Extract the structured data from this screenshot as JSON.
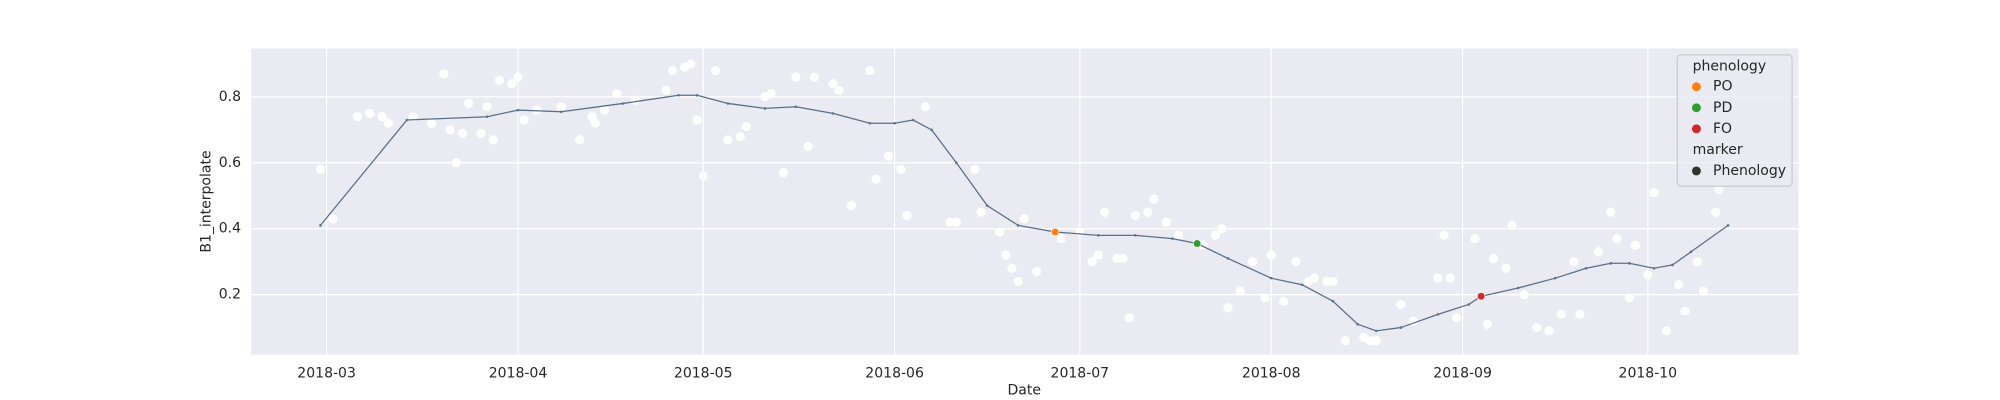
{
  "chart_data": {
    "type": "line",
    "x_label": "Date",
    "y_label": "B1_interpolate",
    "xlim": [
      47.8,
      298.4
    ],
    "ylim": [
      0.018,
      0.947
    ],
    "xticks": [
      {
        "value": 60,
        "label": "2018-03"
      },
      {
        "value": 91,
        "label": "2018-04"
      },
      {
        "value": 121,
        "label": "2018-05"
      },
      {
        "value": 152,
        "label": "2018-06"
      },
      {
        "value": 182,
        "label": "2018-07"
      },
      {
        "value": 213,
        "label": "2018-08"
      },
      {
        "value": 244,
        "label": "2018-09"
      },
      {
        "value": 274,
        "label": "2018-10"
      }
    ],
    "yticks": [
      0.2,
      0.4,
      0.6,
      0.8
    ],
    "grid": true,
    "background": "#eaeaf2",
    "points": {
      "color": "#ffffff",
      "x": [
        59,
        61,
        65,
        67,
        69,
        70,
        74,
        77,
        79,
        80,
        81,
        82,
        83,
        85,
        86,
        87,
        88,
        90,
        91,
        92,
        94,
        98,
        101,
        103,
        103.5,
        105,
        107,
        110,
        115,
        116,
        118,
        119,
        120,
        121,
        123,
        125,
        127,
        128,
        131,
        132,
        134,
        136,
        138,
        139,
        142,
        143,
        145,
        148,
        149,
        151,
        153,
        154,
        157,
        161,
        162,
        165,
        166,
        169,
        170,
        171,
        172,
        173,
        175,
        179,
        182,
        184,
        185,
        186,
        188,
        189,
        190,
        191,
        193,
        194,
        196,
        198,
        202,
        204,
        205,
        206,
        208,
        210,
        212,
        213,
        215,
        217,
        219,
        220,
        222,
        223,
        225,
        228,
        229,
        230,
        234,
        236,
        240,
        241,
        242,
        243,
        246,
        248,
        249,
        251,
        252,
        254,
        256,
        258,
        260,
        262,
        263,
        266,
        268,
        269,
        271,
        272,
        274,
        275,
        277,
        279,
        280,
        282,
        283,
        285,
        285.5
      ],
      "values": [
        0.58,
        0.43,
        0.74,
        0.75,
        0.74,
        0.72,
        0.74,
        0.72,
        0.87,
        0.7,
        0.6,
        0.69,
        0.78,
        0.69,
        0.77,
        0.67,
        0.85,
        0.84,
        0.86,
        0.73,
        0.76,
        0.77,
        0.67,
        0.74,
        0.72,
        0.76,
        0.81,
        0.79,
        0.82,
        0.88,
        0.89,
        0.9,
        0.73,
        0.56,
        0.88,
        0.67,
        0.68,
        0.71,
        0.8,
        0.81,
        0.57,
        0.86,
        0.65,
        0.86,
        0.84,
        0.82,
        0.47,
        0.88,
        0.55,
        0.62,
        0.58,
        0.44,
        0.77,
        0.42,
        0.42,
        0.58,
        0.45,
        0.39,
        0.32,
        0.28,
        0.24,
        0.43,
        0.27,
        0.37,
        0.39,
        0.3,
        0.32,
        0.45,
        0.31,
        0.31,
        0.13,
        0.44,
        0.45,
        0.49,
        0.42,
        0.38,
        0.35,
        0.38,
        0.4,
        0.16,
        0.21,
        0.3,
        0.19,
        0.32,
        0.18,
        0.3,
        0.24,
        0.25,
        0.24,
        0.24,
        0.06,
        0.07,
        0.06,
        0.06,
        0.17,
        0.12,
        0.25,
        0.38,
        0.25,
        0.13,
        0.37,
        0.11,
        0.31,
        0.28,
        0.41,
        0.2,
        0.1,
        0.09,
        0.14,
        0.3,
        0.14,
        0.33,
        0.45,
        0.37,
        0.19,
        0.35,
        0.26,
        0.51,
        0.09,
        0.23,
        0.15,
        0.3,
        0.21,
        0.45,
        0.52
      ]
    },
    "line": {
      "color": "#5a7088",
      "x": [
        59,
        73,
        86,
        91,
        98,
        108,
        117,
        120,
        125,
        131,
        136,
        142,
        148,
        152,
        155,
        158,
        162,
        167,
        172,
        178,
        185,
        191,
        197,
        201,
        206,
        213,
        218,
        223,
        227,
        230,
        234,
        240,
        245,
        247,
        253,
        259,
        264,
        268,
        271,
        275,
        278,
        281,
        287
      ],
      "values": [
        0.41,
        0.73,
        0.74,
        0.76,
        0.755,
        0.78,
        0.805,
        0.805,
        0.78,
        0.765,
        0.77,
        0.75,
        0.72,
        0.72,
        0.73,
        0.7,
        0.6,
        0.47,
        0.41,
        0.39,
        0.38,
        0.38,
        0.37,
        0.355,
        0.31,
        0.25,
        0.23,
        0.18,
        0.11,
        0.09,
        0.1,
        0.14,
        0.17,
        0.195,
        0.22,
        0.25,
        0.28,
        0.295,
        0.295,
        0.28,
        0.29,
        0.33,
        0.41
      ]
    },
    "legend_title": "phenology",
    "legend": "upper right",
    "series": [
      {
        "name": "PO",
        "color": "#ff7f0e",
        "x": [
          178
        ],
        "values": [
          0.39
        ]
      },
      {
        "name": "PD",
        "color": "#2ca02c",
        "x": [
          201
        ],
        "values": [
          0.355
        ]
      },
      {
        "name": "FO",
        "color": "#d62728",
        "x": [
          247
        ],
        "values": [
          0.195
        ]
      }
    ],
    "marker_legend": {
      "title": "marker",
      "label": "Phenology",
      "color": "#333333"
    }
  }
}
